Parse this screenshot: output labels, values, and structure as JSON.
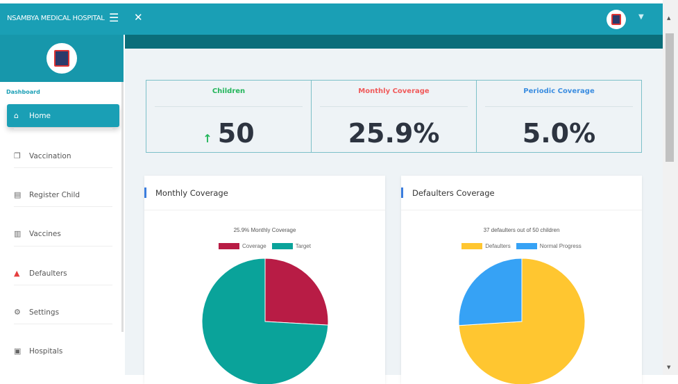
{
  "header": {
    "brand": "NSAMBYA MEDICAL HOSPITAL",
    "menu_icon": "hamburger-icon",
    "expand_icon": "expand-icon",
    "user_icon": "hospital-avatar",
    "chevron": "⌄"
  },
  "sidebar": {
    "section": "Dashboard",
    "items": [
      {
        "label": "Home",
        "icon": "⌂",
        "active": true
      },
      {
        "label": "Vaccination",
        "icon": "❐"
      },
      {
        "label": "Register Child",
        "icon": "▤"
      },
      {
        "label": "Vaccines",
        "icon": "▥"
      },
      {
        "label": "Defaulters",
        "icon": "▲",
        "color": "#e53e3e"
      },
      {
        "label": "Settings",
        "icon": "⚙"
      },
      {
        "label": "Hospitals",
        "icon": "▣"
      }
    ]
  },
  "stats": [
    {
      "title": "Children",
      "value": "50",
      "color": "#22b55a",
      "arrow": "↑"
    },
    {
      "title": "Monthly Coverage",
      "value": "25.9%",
      "color": "#f05a5a"
    },
    {
      "title": "Periodic Coverage",
      "value": "5.0%",
      "color": "#3b8de0"
    }
  ],
  "cards": [
    {
      "title": "Monthly Coverage"
    },
    {
      "title": "Defaulters Coverage"
    }
  ],
  "chart_data": [
    {
      "type": "pie",
      "title": "25.9% Monthly Coverage",
      "legend": "top",
      "categories": [
        "Coverage",
        "Target"
      ],
      "values": [
        25.9,
        74.1
      ],
      "colors": [
        "#b81c45",
        "#0aa39a"
      ]
    },
    {
      "type": "pie",
      "title": "37 defaulters out of 50 children",
      "legend": "top",
      "categories": [
        "Defaulters",
        "Normal Progress"
      ],
      "values": [
        37,
        13
      ],
      "colors": [
        "#ffc630",
        "#36a2f5"
      ]
    }
  ]
}
